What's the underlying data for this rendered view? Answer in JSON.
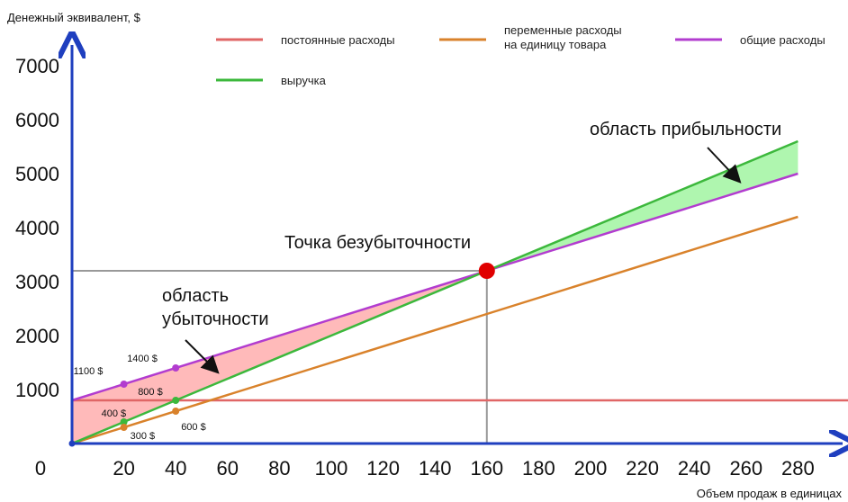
{
  "chart_data": {
    "type": "line",
    "ylabel": "Денежный эквивалент, $",
    "xlabel": "Объем продаж в единицах",
    "origin_label": "0",
    "xlim": [
      0,
      300
    ],
    "ylim": [
      0,
      7500
    ],
    "x_ticks": [
      20,
      40,
      60,
      80,
      100,
      120,
      140,
      160,
      180,
      200,
      220,
      240,
      260,
      280
    ],
    "y_ticks": [
      1000,
      2000,
      3000,
      4000,
      5000,
      6000,
      7000
    ],
    "grid": false,
    "legend_position": "top",
    "series": [
      {
        "key": "fixed",
        "name": "постоянные расходы",
        "color": "#e06666",
        "x": [
          0,
          300
        ],
        "y": [
          800,
          800
        ]
      },
      {
        "key": "variable",
        "name": "переменные расходы\nна единицу товара",
        "color": "#d9822b",
        "x": [
          0,
          280
        ],
        "y": [
          0,
          4200
        ]
      },
      {
        "key": "total",
        "name": "общие расходы",
        "color": "#b23ccf",
        "x": [
          0,
          280
        ],
        "y": [
          800,
          5000
        ]
      },
      {
        "key": "revenue",
        "name": "выручка",
        "color": "#3cb83c",
        "x": [
          0,
          280
        ],
        "y": [
          0,
          5600
        ]
      }
    ],
    "points": [
      {
        "series": "total",
        "x": 20,
        "y": 1100,
        "label": "1100 $"
      },
      {
        "series": "total",
        "x": 40,
        "y": 1400,
        "label": "1400 $"
      },
      {
        "series": "revenue",
        "x": 20,
        "y": 400,
        "label": "400 $"
      },
      {
        "series": "revenue",
        "x": 40,
        "y": 800,
        "label": "800 $"
      },
      {
        "series": "variable",
        "x": 20,
        "y": 300,
        "label": "300 $"
      },
      {
        "series": "variable",
        "x": 40,
        "y": 600,
        "label": "600 $"
      }
    ],
    "break_even": {
      "x": 160,
      "y": 3200,
      "label": "Точка безубыточности",
      "color": "#e00000"
    },
    "loss_area": {
      "label": "область\nубыточности",
      "color": "#ffb3b3"
    },
    "profit_area": {
      "label": "область прибыльности",
      "color": "#a6f5a6"
    }
  }
}
